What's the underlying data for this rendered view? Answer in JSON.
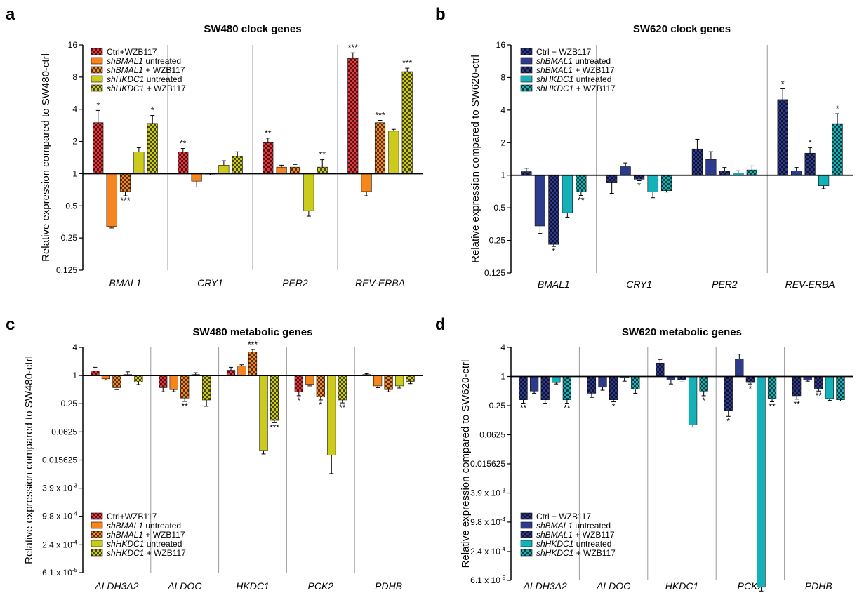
{
  "colors": {
    "red": "#e8373c",
    "orange": "#f7851e",
    "olive": "#cccb1b",
    "navy": "#2e3a8c",
    "teal": "#14b1b8",
    "axis": "#000000",
    "separator": "#9a9a9a"
  },
  "chart_data": [
    {
      "type": "bar",
      "panel_letter": "a",
      "title": "SW480 clock genes",
      "ylabel": "Relative expression compared to SW480-ctrl",
      "scale": "log2",
      "baseline": 1,
      "ylim": [
        0.125,
        16
      ],
      "yticks": [
        0.125,
        0.25,
        0.5,
        1,
        2,
        4,
        8,
        16
      ],
      "ytick_labels": [
        "0.125",
        "0.25",
        "0.5",
        "1",
        "2",
        "4",
        "8",
        "16"
      ],
      "legend_position": "top-left",
      "categories": [
        "BMAL1",
        "CRY1",
        "PER2",
        "REV-ERBA"
      ],
      "series": [
        {
          "name": "Ctrl+WZB117",
          "italic_part": "",
          "color_key": "red",
          "pattern": "checker",
          "values": [
            3.0,
            1.6,
            1.95,
            12.0
          ],
          "errors": [
            0.9,
            0.12,
            0.2,
            1.5
          ],
          "stars": [
            "*",
            "**",
            "**",
            "***"
          ]
        },
        {
          "name": " untreated",
          "italic_part": "shBMAL1",
          "color_key": "orange",
          "pattern": "solid",
          "values": [
            0.32,
            0.85,
            1.15,
            0.68
          ],
          "errors": [
            0.01,
            0.1,
            0.05,
            0.06
          ],
          "stars": [
            "",
            "",
            "",
            ""
          ]
        },
        {
          "name": " + WZB117",
          "italic_part": "shBMAL1",
          "color_key": "orange",
          "pattern": "checker",
          "values": [
            0.68,
            0.99,
            1.15,
            3.0
          ],
          "errors": [
            0.06,
            0.02,
            0.07,
            0.15
          ],
          "stars": [
            "***",
            "",
            "",
            "***"
          ]
        },
        {
          "name": " untreated",
          "italic_part": "shHKDC1",
          "color_key": "olive",
          "pattern": "solid",
          "values": [
            1.6,
            1.2,
            0.45,
            2.5
          ],
          "errors": [
            0.15,
            0.12,
            0.05,
            0.1
          ],
          "stars": [
            "",
            "",
            "",
            ""
          ]
        },
        {
          "name": " + WZB117",
          "italic_part": "shHKDC1",
          "color_key": "olive",
          "pattern": "checker",
          "values": [
            2.95,
            1.45,
            1.15,
            9.0
          ],
          "errors": [
            0.55,
            0.15,
            0.2,
            0.7
          ],
          "stars": [
            "*",
            "",
            "**",
            "***"
          ]
        }
      ]
    },
    {
      "type": "bar",
      "panel_letter": "b",
      "title": "SW620 clock genes",
      "ylabel": "Relative expression compared to SW620-ctrl",
      "scale": "log2",
      "baseline": 1,
      "ylim": [
        0.125,
        16
      ],
      "yticks": [
        0.125,
        0.25,
        0.5,
        1,
        2,
        4,
        8,
        16
      ],
      "ytick_labels": [
        "0.125",
        "0.25",
        "0.5",
        "1",
        "2",
        "4",
        "8",
        "16"
      ],
      "legend_position": "top-left",
      "categories": [
        "BMAL1",
        "CRY1",
        "PER2",
        "REV-ERBA"
      ],
      "series": [
        {
          "name": "Ctrl + WZB117",
          "italic_part": "",
          "color_key": "navy",
          "pattern": "checker",
          "values": [
            1.08,
            0.85,
            1.75,
            5.0
          ],
          "errors": [
            0.08,
            0.17,
            0.4,
            1.3
          ],
          "stars": [
            "",
            "",
            "",
            "*"
          ]
        },
        {
          "name": " untreated",
          "italic_part": "shBMAL1",
          "color_key": "navy",
          "pattern": "solid",
          "values": [
            0.34,
            1.2,
            1.4,
            1.1
          ],
          "errors": [
            0.05,
            0.1,
            0.25,
            0.08
          ],
          "stars": [
            "",
            "",
            "",
            ""
          ]
        },
        {
          "name": " + WZB117",
          "italic_part": "shBMAL1",
          "color_key": "navy",
          "pattern": "checker",
          "values": [
            0.23,
            0.92,
            1.1,
            1.6
          ],
          "errors": [
            0.01,
            0.03,
            0.08,
            0.2
          ],
          "stars": [
            "*",
            "*",
            "",
            "*"
          ]
        },
        {
          "name": " untreated",
          "italic_part": "shHKDC1",
          "color_key": "teal",
          "pattern": "solid",
          "values": [
            0.45,
            0.7,
            1.05,
            0.8
          ],
          "errors": [
            0.04,
            0.08,
            0.05,
            0.05
          ],
          "stars": [
            "",
            "",
            "",
            ""
          ]
        },
        {
          "name": " + WZB117",
          "italic_part": "shHKDC1",
          "color_key": "teal",
          "pattern": "checker",
          "values": [
            0.7,
            0.72,
            1.12,
            3.0
          ],
          "errors": [
            0.05,
            0.02,
            0.1,
            0.7
          ],
          "stars": [
            "**",
            "",
            "",
            "*"
          ]
        }
      ]
    },
    {
      "type": "bar",
      "panel_letter": "c",
      "title": "SW480 metabolic genes",
      "ylabel": "Relative expression compared to SW480-ctrl",
      "scale": "log2",
      "baseline": 1,
      "ylim": [
        6.1e-05,
        4
      ],
      "yticks": [
        6.1e-05,
        0.00024,
        0.00098,
        0.0039,
        0.015625,
        0.0625,
        0.25,
        1,
        4
      ],
      "ytick_labels": [
        "6.1 x 10-5",
        "2.4 x 10-4",
        "9.8 x 10-4",
        "3.9 x 10-3",
        "0.015625",
        "0.0625",
        "0.25",
        "1",
        "4"
      ],
      "legend_position": "bottom-left",
      "categories": [
        "ALDH3A2",
        "ALDOC",
        "HKDC1",
        "PCK2",
        "PDHB"
      ],
      "series": [
        {
          "name": "Ctrl+WZB117",
          "italic_part": "",
          "color_key": "red",
          "pattern": "checker",
          "values": [
            1.25,
            0.55,
            1.3,
            0.45,
            1.05
          ],
          "errors": [
            0.25,
            0.1,
            0.2,
            0.08,
            0.05
          ],
          "stars": [
            "",
            "",
            "",
            "*",
            ""
          ]
        },
        {
          "name": " untreated",
          "italic_part": "shBMAL1",
          "color_key": "orange",
          "pattern": "solid",
          "values": [
            0.85,
            0.5,
            1.6,
            0.65,
            0.6
          ],
          "errors": [
            0.05,
            0.05,
            0.1,
            0.05,
            0.05
          ],
          "stars": [
            "",
            "",
            "",
            "",
            ""
          ]
        },
        {
          "name": " + WZB117",
          "italic_part": "shBMAL1",
          "color_key": "orange",
          "pattern": "checker",
          "values": [
            0.55,
            0.33,
            3.2,
            0.35,
            0.5
          ],
          "errors": [
            0.05,
            0.05,
            0.4,
            0.05,
            0.05
          ],
          "stars": [
            "",
            "**",
            "***",
            "*",
            ""
          ]
        },
        {
          "name": " untreated",
          "italic_part": "shHKDC1",
          "color_key": "olive",
          "pattern": "solid",
          "values": [
            1.05,
            1.05,
            0.025,
            0.02,
            0.6
          ],
          "errors": [
            0.15,
            0.1,
            0.004,
            0.012,
            0.06
          ],
          "stars": [
            "",
            "",
            "",
            "",
            ""
          ]
        },
        {
          "name": " + WZB117",
          "italic_part": "shHKDC1",
          "color_key": "olive",
          "pattern": "checker",
          "values": [
            0.72,
            0.3,
            0.11,
            0.3,
            0.75
          ],
          "errors": [
            0.08,
            0.08,
            0.012,
            0.04,
            0.08
          ],
          "stars": [
            "",
            "",
            "***",
            "**",
            ""
          ]
        }
      ]
    },
    {
      "type": "bar",
      "panel_letter": "d",
      "title": "SW620 metabolic genes",
      "ylabel": "Relative expression compared to SW620-ctrl",
      "scale": "log2",
      "baseline": 1,
      "ylim": [
        6.1e-05,
        4
      ],
      "yticks": [
        6.1e-05,
        0.00024,
        0.00098,
        0.0039,
        0.015625,
        0.0625,
        0.25,
        1,
        4
      ],
      "ytick_labels": [
        "6.1 x 10-5",
        "2.4 x 10-4",
        "9.8 x 10-4",
        "3.9 x 10-3",
        "0.015625",
        "0.0625",
        "0.25",
        "1",
        "4"
      ],
      "legend_position": "bottom-left",
      "categories": [
        "ALDH3A2",
        "ALDOC",
        "HKDC1",
        "PCK2",
        "PDHB"
      ],
      "series": [
        {
          "name": "Ctrl + WZB117",
          "italic_part": "",
          "color_key": "navy",
          "pattern": "checker",
          "values": [
            0.33,
            0.45,
            1.9,
            0.2,
            0.4
          ],
          "errors": [
            0.05,
            0.08,
            0.35,
            0.05,
            0.06
          ],
          "stars": [
            "**",
            "",
            "",
            "*",
            "**"
          ]
        },
        {
          "name": " untreated",
          "italic_part": "shBMAL1",
          "color_key": "navy",
          "pattern": "solid",
          "values": [
            0.5,
            0.6,
            0.85,
            2.3,
            0.85
          ],
          "errors": [
            0.05,
            0.08,
            0.15,
            0.6,
            0.05
          ],
          "stars": [
            "",
            "",
            "",
            "",
            ""
          ]
        },
        {
          "name": " + WZB117",
          "italic_part": "shBMAL1",
          "color_key": "navy",
          "pattern": "checker",
          "values": [
            0.33,
            0.33,
            0.85,
            0.75,
            0.55
          ],
          "errors": [
            0.05,
            0.03,
            0.08,
            0.05,
            0.05
          ],
          "stars": [
            "",
            "*",
            "",
            "*",
            "**"
          ]
        },
        {
          "name": " untreated",
          "italic_part": "shHKDC1",
          "color_key": "teal",
          "pattern": "solid",
          "values": [
            0.75,
            0.95,
            0.1,
            4.4e-05,
            0.35
          ],
          "errors": [
            0.05,
            0.15,
            0.01,
            8e-06,
            0.03
          ],
          "stars": [
            "",
            "",
            "",
            "",
            ""
          ]
        },
        {
          "name": " + WZB117",
          "italic_part": "shHKDC1",
          "color_key": "teal",
          "pattern": "checker",
          "values": [
            0.33,
            0.55,
            0.5,
            0.35,
            0.33
          ],
          "errors": [
            0.05,
            0.1,
            0.1,
            0.05,
            0.02
          ],
          "stars": [
            "**",
            "",
            "*",
            "**",
            ""
          ]
        }
      ]
    }
  ]
}
